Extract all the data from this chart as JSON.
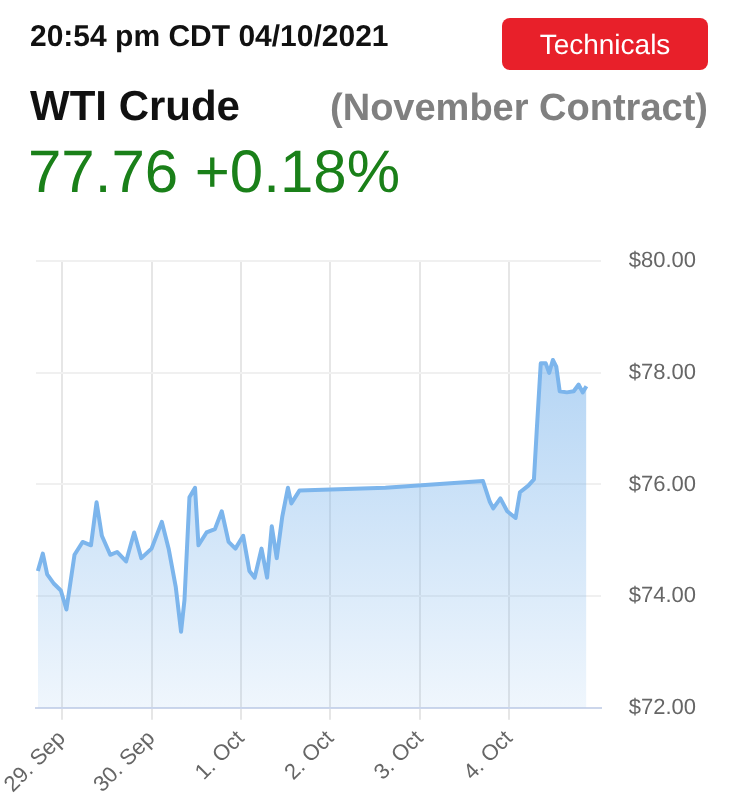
{
  "chart_data": {
    "type": "area",
    "title": "WTI Crude",
    "subtitle": "(November Contract)",
    "annotations": [
      "20:54 pm CDT 04/10/2021",
      "77.76 +0.18%",
      "Technicals"
    ],
    "series": [
      {
        "color": "#7cb5ec",
        "x": [
          "2021-09-28T17:30",
          "2021-09-28T18:50",
          "2021-09-28T20:00",
          "2021-09-28T21:50",
          "2021-09-28T23:40",
          "2021-09-29T01:10",
          "2021-09-29T03:20",
          "2021-09-29T05:30",
          "2021-09-29T07:45",
          "2021-09-29T09:15",
          "2021-09-29T10:40",
          "2021-09-29T12:55",
          "2021-09-29T14:45",
          "2021-09-29T17:10",
          "2021-09-29T19:20",
          "2021-09-29T21:15",
          "2021-09-30T00:00",
          "2021-09-30T02:45",
          "2021-09-30T04:35",
          "2021-09-30T06:30",
          "2021-09-30T07:55",
          "2021-09-30T08:50",
          "2021-09-30T10:10",
          "2021-09-30T11:40",
          "2021-09-30T12:35",
          "2021-09-30T14:45",
          "2021-09-30T17:00",
          "2021-09-30T18:50",
          "2021-09-30T20:40",
          "2021-09-30T22:30",
          "2021-10-01T00:35",
          "2021-10-01T02:15",
          "2021-10-01T03:40",
          "2021-10-01T05:30",
          "2021-10-01T07:00",
          "2021-10-01T08:15",
          "2021-10-01T09:35",
          "2021-10-01T11:05",
          "2021-10-01T12:35",
          "2021-10-01T13:30",
          "2021-10-01T15:40",
          "2021-10-02T14:45",
          "2021-10-03T16:55",
          "2021-10-03T18:45",
          "2021-10-03T19:40",
          "2021-10-03T21:35",
          "2021-10-03T23:25",
          "2021-10-04T01:40",
          "2021-10-04T02:50",
          "2021-10-04T05:05",
          "2021-10-04T06:35",
          "2021-10-04T07:20",
          "2021-10-04T08:25",
          "2021-10-04T09:45",
          "2021-10-04T10:40",
          "2021-10-04T11:40",
          "2021-10-04T12:35",
          "2021-10-04T13:30",
          "2021-10-04T15:25",
          "2021-10-04T17:15",
          "2021-10-04T18:35",
          "2021-10-04T19:40",
          "2021-10-04T20:40"
        ],
        "values": [
          74.45,
          74.76,
          74.39,
          74.22,
          74.1,
          73.76,
          74.74,
          74.97,
          74.91,
          75.68,
          75.08,
          74.74,
          74.79,
          74.62,
          75.14,
          74.68,
          74.85,
          75.33,
          74.85,
          74.16,
          73.36,
          73.93,
          75.77,
          75.94,
          74.91,
          75.14,
          75.2,
          75.52,
          74.97,
          74.85,
          75.08,
          74.45,
          74.33,
          74.85,
          74.33,
          75.25,
          74.68,
          75.43,
          75.94,
          75.66,
          75.89,
          75.94,
          76.06,
          75.69,
          75.57,
          75.75,
          75.52,
          75.4,
          75.86,
          75.98,
          76.09,
          76.96,
          78.17,
          78.17,
          78.0,
          78.23,
          78.11,
          77.67,
          77.65,
          77.67,
          77.79,
          77.65,
          77.76
        ]
      }
    ],
    "xlim": [
      "2021-09-28T17:00",
      "2021-10-05T00:30"
    ],
    "xticks": [
      {
        "value": "2021-09-29",
        "label": "29. Sep"
      },
      {
        "value": "2021-09-30",
        "label": "30. Sep"
      },
      {
        "value": "2021-10-01",
        "label": "1. Oct"
      },
      {
        "value": "2021-10-02",
        "label": "2. Oct"
      },
      {
        "value": "2021-10-03",
        "label": "3. Oct"
      },
      {
        "value": "2021-10-04",
        "label": "4. Oct"
      }
    ],
    "ylim": [
      72,
      80
    ],
    "yticks": [
      {
        "value": 72,
        "label": "$72.00"
      },
      {
        "value": 74,
        "label": "$74.00"
      },
      {
        "value": 76,
        "label": "$76.00"
      },
      {
        "value": 78,
        "label": "$78.00"
      },
      {
        "value": 80,
        "label": "$80.00"
      }
    ],
    "grid": true
  }
}
